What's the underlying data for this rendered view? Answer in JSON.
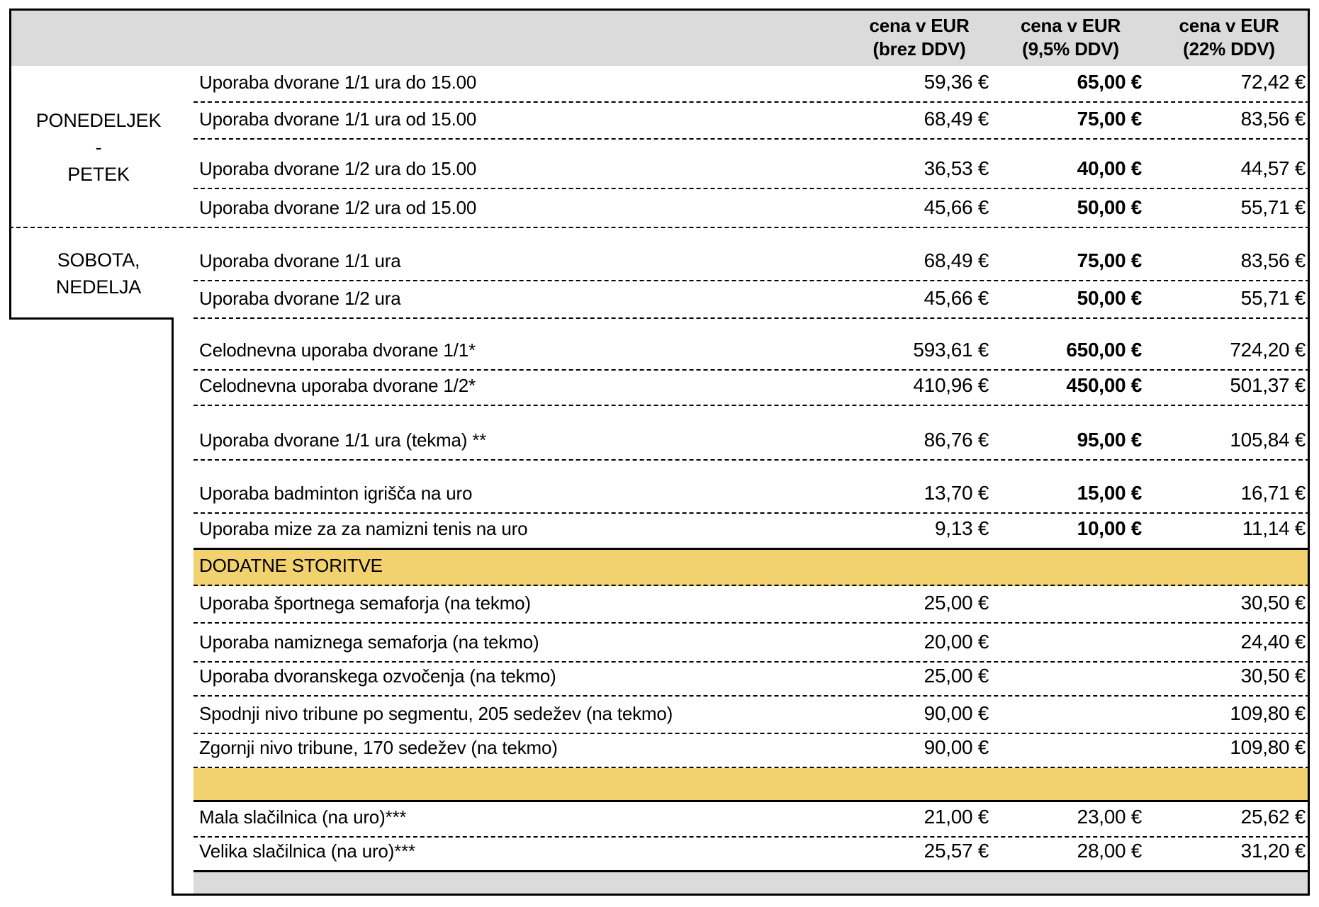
{
  "columns": [
    {
      "title": "cena v EUR",
      "subtitle": "(brez DDV)"
    },
    {
      "title": "cena v EUR",
      "subtitle": "(9,5% DDV)"
    },
    {
      "title": "cena v EUR",
      "subtitle": "(22% DDV)"
    }
  ],
  "day_groups": [
    {
      "lines": [
        "PONEDELJEK",
        "-",
        "PETEK"
      ]
    },
    {
      "lines": [
        "SOBOTA,",
        "NEDELJA"
      ]
    }
  ],
  "rows": [
    {
      "type": "item",
      "desc": "Uporaba dvorane 1/1 ura do 15.00",
      "prices": [
        "59,36 €",
        "65,00 €",
        "72,42 €"
      ],
      "mid_bold": true
    },
    {
      "type": "item",
      "desc": "Uporaba dvorane 1/1 ura od 15.00",
      "prices": [
        "68,49 €",
        "75,00 €",
        "83,56 €"
      ],
      "mid_bold": true
    },
    {
      "type": "item",
      "desc": "Uporaba dvorane 1/2 ura do 15.00",
      "prices": [
        "36,53 €",
        "40,00 €",
        "44,57 €"
      ],
      "mid_bold": true
    },
    {
      "type": "item",
      "desc": "Uporaba dvorane 1/2 ura od 15.00",
      "prices": [
        "45,66 €",
        "50,00 €",
        "55,71 €"
      ],
      "mid_bold": true
    },
    {
      "type": "item",
      "desc": "Uporaba dvorane 1/1 ura",
      "prices": [
        "68,49 €",
        "75,00 €",
        "83,56 €"
      ],
      "mid_bold": true
    },
    {
      "type": "item",
      "desc": "Uporaba dvorane 1/2 ura",
      "prices": [
        "45,66 €",
        "50,00 €",
        "55,71 €"
      ],
      "mid_bold": true
    },
    {
      "type": "item",
      "desc": "Celodnevna uporaba dvorane 1/1*",
      "prices": [
        "593,61 €",
        "650,00 €",
        "724,20 €"
      ],
      "mid_bold": true
    },
    {
      "type": "item",
      "desc": "Celodnevna uporaba dvorane 1/2*",
      "prices": [
        "410,96 €",
        "450,00 €",
        "501,37 €"
      ],
      "mid_bold": true
    },
    {
      "type": "item",
      "desc": "Uporaba dvorane 1/1 ura (tekma) **",
      "prices": [
        "86,76 €",
        "95,00 €",
        "105,84 €"
      ],
      "mid_bold": true
    },
    {
      "type": "item",
      "desc": "Uporaba badminton igrišča na uro",
      "prices": [
        "13,70 €",
        "15,00 €",
        "16,71 €"
      ],
      "mid_bold": true
    },
    {
      "type": "item",
      "desc": "Uporaba mize za za namizni tenis na uro",
      "prices": [
        "9,13 €",
        "10,00 €",
        "11,14 €"
      ],
      "mid_bold": true
    },
    {
      "type": "section",
      "desc": "DODATNE STORITVE"
    },
    {
      "type": "item",
      "desc": "Uporaba športnega semaforja (na tekmo)",
      "prices": [
        "25,00 €",
        "",
        "30,50 €"
      ],
      "mid_bold": false
    },
    {
      "type": "item",
      "desc": "Uporaba namiznega semaforja (na tekmo)",
      "prices": [
        "20,00 €",
        "",
        "24,40 €"
      ],
      "mid_bold": false
    },
    {
      "type": "item",
      "desc": "Uporaba dvoranskega ozvočenja (na tekmo)",
      "prices": [
        "25,00 €",
        "",
        "30,50 €"
      ],
      "mid_bold": false
    },
    {
      "type": "item",
      "desc": "Spodnji nivo tribune po segmentu, 205 sedežev (na tekmo)",
      "prices": [
        "90,00 €",
        "",
        "109,80 €"
      ],
      "mid_bold": false
    },
    {
      "type": "item",
      "desc": "Zgornji nivo tribune, 170 sedežev (na tekmo)",
      "prices": [
        "90,00 €",
        "",
        "109,80 €"
      ],
      "mid_bold": false
    },
    {
      "type": "spacer"
    },
    {
      "type": "item",
      "desc": "Mala slačilnica (na uro)***",
      "prices": [
        "21,00 €",
        "23,00 €",
        "25,62 €"
      ],
      "mid_bold": false
    },
    {
      "type": "item",
      "desc": "Velika slačilnica (na uro)***",
      "prices": [
        "25,57 €",
        "28,00 €",
        "31,20 €"
      ],
      "mid_bold": false
    },
    {
      "type": "footer"
    }
  ],
  "colors": {
    "section_yellow": "#F2D26E",
    "header_gray": "#DBDBDB",
    "footer_gray": "#DBDBDB",
    "border_black": "#000000"
  }
}
